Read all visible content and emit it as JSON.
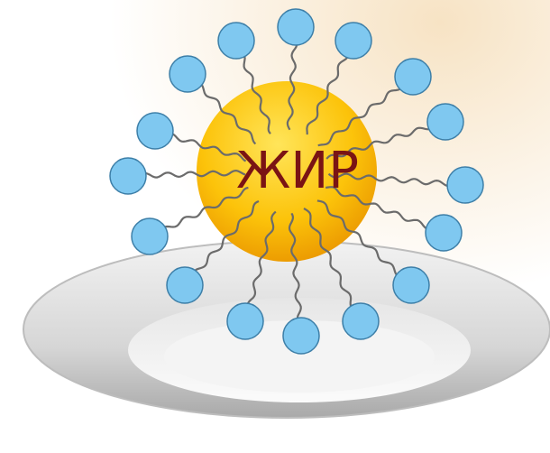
{
  "label": "ЖИР"
}
